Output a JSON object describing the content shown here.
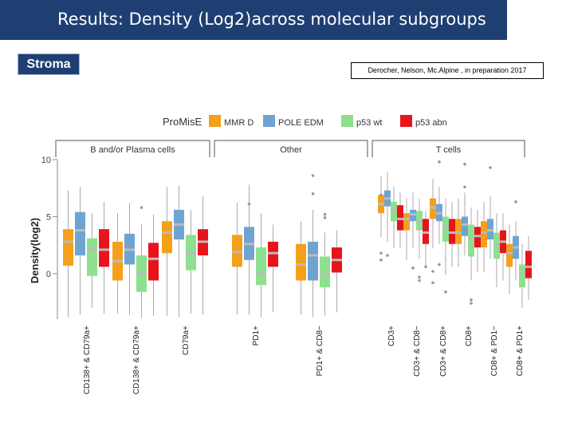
{
  "slide": {
    "title": "Results: Density (Log2)across molecular subgroups",
    "section_label": "Stroma",
    "citation": "Derocher, Nelson, Mc.Alpine , in preparation 2017"
  },
  "chart_data": {
    "type": "box",
    "ylabel": "Density(log2)",
    "yticks": [
      0,
      5,
      10
    ],
    "ylim": [
      -4,
      10
    ],
    "legend": {
      "title": "ProMisE",
      "position": "top",
      "entries": [
        {
          "name": "MMR D",
          "color": "#f5a01a"
        },
        {
          "name": "POLE EDM",
          "color": "#6fa4d2"
        },
        {
          "name": "p53 wt",
          "color": "#8ee08e"
        },
        {
          "name": "p53 abn",
          "color": "#e8141c"
        }
      ]
    },
    "panels": [
      {
        "label": "B and/or Plasma cells",
        "categories": [
          {
            "label": "CD138+ & CD79a+",
            "boxes": [
              {
                "q1": 0.7,
                "median": 2.8,
                "q3": 3.9,
                "low": -3.8,
                "high": 7.3
              },
              {
                "q1": 1.6,
                "median": 3.8,
                "q3": 5.4,
                "low": -3.6,
                "high": 7.6
              },
              {
                "q1": -0.2,
                "median": 2.1,
                "q3": 3.1,
                "low": -3.0,
                "high": 5.3
              },
              {
                "q1": 0.6,
                "median": 2.1,
                "q3": 3.9,
                "low": -3.5,
                "high": 6.3
              }
            ]
          },
          {
            "label": "CD138+ & CD79a+",
            "boxes": [
              {
                "q1": -0.6,
                "median": 1.1,
                "q3": 2.8,
                "low": -3.5,
                "high": 5.3
              },
              {
                "q1": 0.8,
                "median": 2.1,
                "q3": 3.5,
                "low": -3.6,
                "high": 6.2
              },
              {
                "q1": -1.6,
                "median": 0.1,
                "q3": 1.6,
                "low": -3.9,
                "high": 4.3
              },
              {
                "q1": -0.6,
                "median": 1.3,
                "q3": 2.7,
                "low": -3.7,
                "high": 5.2
              }
            ]
          },
          {
            "label": "CD79a+",
            "boxes": [
              {
                "q1": 1.8,
                "median": 3.6,
                "q3": 4.6,
                "low": -3.7,
                "high": 7.6
              },
              {
                "q1": 3.0,
                "median": 4.3,
                "q3": 5.6,
                "low": -3.8,
                "high": 7.7
              },
              {
                "q1": 0.3,
                "median": 1.8,
                "q3": 3.4,
                "low": -3.5,
                "high": 5.6
              },
              {
                "q1": 1.6,
                "median": 2.8,
                "q3": 3.9,
                "low": -3.6,
                "high": 6.8
              }
            ]
          }
        ]
      },
      {
        "label": "Other",
        "categories": [
          {
            "label": "PD1+",
            "boxes": [
              {
                "q1": 0.6,
                "median": 1.9,
                "q3": 3.4,
                "low": -3.6,
                "high": 6.2
              },
              {
                "q1": 1.2,
                "median": 2.6,
                "q3": 4.1,
                "low": -3.6,
                "high": 7.8
              },
              {
                "q1": -1.0,
                "median": 0.1,
                "q3": 2.3,
                "low": -3.8,
                "high": 5.3
              },
              {
                "q1": 0.6,
                "median": 1.8,
                "q3": 2.8,
                "low": -3.4,
                "high": 4.3
              }
            ]
          },
          {
            "label": "PD1+ & CD8−",
            "boxes": [
              {
                "q1": -0.6,
                "median": 0.8,
                "q3": 2.6,
                "low": -3.6,
                "high": 4.6
              },
              {
                "q1": -0.6,
                "median": 1.6,
                "q3": 2.8,
                "low": -3.8,
                "high": 5.6
              },
              {
                "q1": -1.2,
                "median": -0.1,
                "q3": 1.5,
                "low": -3.7,
                "high": 3.6
              },
              {
                "q1": 0.1,
                "median": 1.2,
                "q3": 2.3,
                "low": -3.4,
                "high": 3.8
              }
            ]
          }
        ]
      },
      {
        "label": "T cells",
        "categories": [
          {
            "label": "CD3+",
            "boxes": [
              {
                "q1": 5.3,
                "median": 6.1,
                "q3": 6.9,
                "low": 3.2,
                "high": 8.6
              },
              {
                "q1": 5.9,
                "median": 6.6,
                "q3": 7.3,
                "low": 2.8,
                "high": 8.9
              },
              {
                "q1": 4.6,
                "median": 5.6,
                "q3": 6.3,
                "low": 2.2,
                "high": 7.6
              },
              {
                "q1": 3.8,
                "median": 4.8,
                "q3": 6.0,
                "low": 2.3,
                "high": 7.1
              }
            ]
          },
          {
            "label": "CD3+ & CD8−",
            "boxes": [
              {
                "q1": 3.8,
                "median": 4.8,
                "q3": 5.3,
                "low": 1.2,
                "high": 6.6
              },
              {
                "q1": 4.6,
                "median": 5.2,
                "q3": 5.6,
                "low": 2.2,
                "high": 7.1
              },
              {
                "q1": 3.8,
                "median": 4.6,
                "q3": 5.5,
                "low": 1.3,
                "high": 6.6
              },
              {
                "q1": 2.6,
                "median": 3.6,
                "q3": 4.8,
                "low": 0.6,
                "high": 5.5
              }
            ]
          },
          {
            "label": "CD3+ & CD8+",
            "boxes": [
              {
                "q1": 4.8,
                "median": 5.8,
                "q3": 6.6,
                "low": 2.2,
                "high": 8.3
              },
              {
                "q1": 4.6,
                "median": 5.3,
                "q3": 6.1,
                "low": 2.6,
                "high": 7.6
              },
              {
                "q1": 2.8,
                "median": 4.1,
                "q3": 5.0,
                "low": -0.1,
                "high": 6.6
              },
              {
                "q1": 2.6,
                "median": 3.6,
                "q3": 4.8,
                "low": 0.6,
                "high": 6.3
              }
            ]
          },
          {
            "label": "CD8+",
            "boxes": [
              {
                "q1": 2.6,
                "median": 3.6,
                "q3": 4.8,
                "low": 0.6,
                "high": 6.6
              },
              {
                "q1": 3.3,
                "median": 4.3,
                "q3": 5.0,
                "low": 1.6,
                "high": 7.1
              },
              {
                "q1": 1.5,
                "median": 3.0,
                "q3": 4.3,
                "low": -0.6,
                "high": 5.8
              },
              {
                "q1": 2.3,
                "median": 3.3,
                "q3": 4.1,
                "low": 0.1,
                "high": 5.6
              }
            ]
          },
          {
            "label": "CD8+ & PD1−",
            "boxes": [
              {
                "q1": 2.3,
                "median": 3.6,
                "q3": 4.6,
                "low": 0.1,
                "high": 6.3
              },
              {
                "q1": 3.0,
                "median": 3.8,
                "q3": 4.8,
                "low": 1.3,
                "high": 6.8
              },
              {
                "q1": 1.3,
                "median": 2.6,
                "q3": 3.6,
                "low": -1.2,
                "high": 5.3
              },
              {
                "q1": 1.8,
                "median": 2.8,
                "q3": 3.8,
                "low": -0.6,
                "high": 5.3
              }
            ]
          },
          {
            "label": "CD8+ & PD1+",
            "boxes": [
              {
                "q1": 0.6,
                "median": 1.8,
                "q3": 2.6,
                "low": -1.8,
                "high": 4.3
              },
              {
                "q1": 1.3,
                "median": 2.3,
                "q3": 3.3,
                "low": -0.6,
                "high": 4.6
              },
              {
                "q1": -1.2,
                "median": -0.1,
                "q3": 0.8,
                "low": -3.0,
                "high": 2.6
              },
              {
                "q1": -0.4,
                "median": 0.6,
                "q3": 2.0,
                "low": -2.3,
                "high": 3.3
              }
            ]
          }
        ]
      }
    ],
    "outliers": [
      {
        "category": "CD138+ & CD79a+",
        "series": "p53 wt",
        "y": 5.8
      },
      {
        "category": "PD1+",
        "series": "POLE EDM",
        "y": 6.1
      },
      {
        "category": "PD1+ & CD8−",
        "series": "POLE EDM",
        "y": 8.6
      },
      {
        "category": "PD1+ & CD8−",
        "series": "POLE EDM",
        "y": 7.0
      },
      {
        "category": "PD1+ & CD8−",
        "series": "p53 wt",
        "y": 5.2
      },
      {
        "category": "PD1+ & CD8−",
        "series": "p53 wt",
        "y": 4.9
      },
      {
        "category": "CD3+",
        "series": "MMR D",
        "y": 6.9
      },
      {
        "category": "CD3+",
        "series": "MMR D",
        "y": 1.8
      },
      {
        "category": "CD3+",
        "series": "MMR D",
        "y": 1.2
      },
      {
        "category": "CD3+",
        "series": "POLE EDM",
        "y": 1.6
      },
      {
        "category": "CD3+ & CD8−",
        "series": "POLE EDM",
        "y": 0.5
      },
      {
        "category": "CD3+ & CD8−",
        "series": "p53 wt",
        "y": -0.3
      },
      {
        "category": "CD3+ & CD8−",
        "series": "p53 wt",
        "y": -0.6
      },
      {
        "category": "CD3+ & CD8−",
        "series": "p53 abn",
        "y": 0.6
      },
      {
        "category": "CD3+ & CD8+",
        "series": "MMR D",
        "y": 0.2
      },
      {
        "category": "CD3+ & CD8+",
        "series": "MMR D",
        "y": -0.8
      },
      {
        "category": "CD3+ & CD8+",
        "series": "POLE EDM",
        "y": 9.8
      },
      {
        "category": "CD3+ & CD8+",
        "series": "POLE EDM",
        "y": 0.8
      },
      {
        "category": "CD3+ & CD8+",
        "series": "p53 wt",
        "y": -1.6
      },
      {
        "category": "CD8+",
        "series": "POLE EDM",
        "y": 9.6
      },
      {
        "category": "CD8+",
        "series": "POLE EDM",
        "y": 7.6
      },
      {
        "category": "CD8+",
        "series": "p53 wt",
        "y": -2.3
      },
      {
        "category": "CD8+",
        "series": "p53 wt",
        "y": -2.6
      },
      {
        "category": "CD8+ & PD1−",
        "series": "POLE EDM",
        "y": 9.3
      },
      {
        "category": "CD8+ & PD1+",
        "series": "POLE EDM",
        "y": 6.3
      }
    ]
  }
}
